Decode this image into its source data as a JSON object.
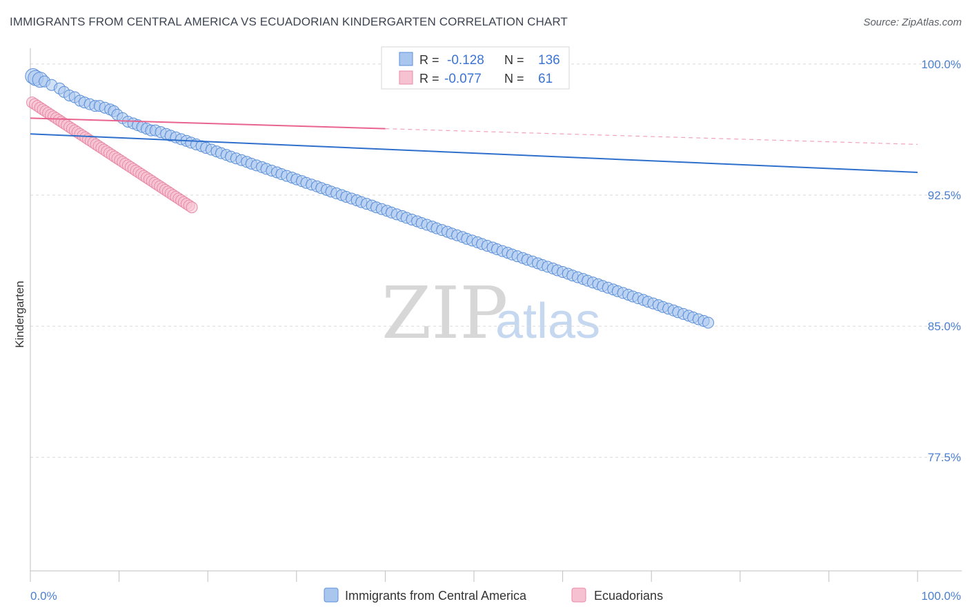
{
  "title": "IMMIGRANTS FROM CENTRAL AMERICA VS ECUADORIAN KINDERGARTEN CORRELATION CHART",
  "source": "Source: ZipAtlas.com",
  "watermark": {
    "zip": "ZIP",
    "atlas": "atlas"
  },
  "colors": {
    "blue_fill": "#a9c6ef",
    "blue_stroke": "#5b8fd8",
    "blue_line": "#2e6fcc",
    "pink_fill": "#f6c2d2",
    "pink_stroke": "#e88aa6",
    "pink_line": "#e8648e",
    "grid": "#d9d9d9",
    "accent_text": "#3b74d4"
  },
  "legend": {
    "series1": {
      "r_label": "R =",
      "r_value": "-0.128",
      "n_label": "N =",
      "n_value": "136"
    },
    "series2": {
      "r_label": "R =",
      "r_value": "-0.077",
      "n_label": "N =",
      "n_value": "61"
    }
  },
  "chart_data": {
    "type": "scatter",
    "title": "IMMIGRANTS FROM CENTRAL AMERICA VS ECUADORIAN KINDERGARTEN CORRELATION CHART",
    "xlabel": "",
    "ylabel": "Kindergarten",
    "xlim": [
      0,
      100
    ],
    "ylim": [
      71.0,
      100.9
    ],
    "x_tick_labels": [
      "0.0%",
      "100.0%"
    ],
    "y_ticks": [
      100.0,
      92.5,
      85.0,
      77.5
    ],
    "y_tick_labels": [
      "100.0%",
      "92.5%",
      "85.0%",
      "77.5%"
    ],
    "grid": true,
    "legend_position": "top-center",
    "series": [
      {
        "name": "Immigrants from Central America",
        "color": "#a9c6ef",
        "trend": {
          "x0": 0,
          "y0": 96.0,
          "x1": 100,
          "y1": 93.8,
          "dashed_from": null
        },
        "points": [
          [
            0.3,
            99.3
          ],
          [
            0.6,
            99.2
          ],
          [
            1.1,
            99.1
          ],
          [
            1.6,
            99.0
          ],
          [
            2.4,
            98.8
          ],
          [
            3.3,
            98.6
          ],
          [
            3.8,
            98.4
          ],
          [
            4.4,
            98.2
          ],
          [
            5.0,
            98.1
          ],
          [
            5.6,
            97.9
          ],
          [
            6.1,
            97.8
          ],
          [
            6.7,
            97.7
          ],
          [
            7.3,
            97.6
          ],
          [
            7.8,
            97.6
          ],
          [
            8.4,
            97.5
          ],
          [
            9.0,
            97.4
          ],
          [
            9.4,
            97.3
          ],
          [
            9.8,
            97.1
          ],
          [
            10.4,
            96.9
          ],
          [
            11.0,
            96.7
          ],
          [
            11.6,
            96.6
          ],
          [
            12.1,
            96.5
          ],
          [
            12.6,
            96.4
          ],
          [
            13.1,
            96.3
          ],
          [
            13.6,
            96.2
          ],
          [
            14.1,
            96.2
          ],
          [
            14.7,
            96.1
          ],
          [
            15.3,
            96.0
          ],
          [
            15.8,
            95.9
          ],
          [
            16.4,
            95.8
          ],
          [
            17.0,
            95.7
          ],
          [
            17.6,
            95.6
          ],
          [
            18.1,
            95.5
          ],
          [
            18.7,
            95.4
          ],
          [
            19.3,
            95.3
          ],
          [
            19.8,
            95.2
          ],
          [
            20.4,
            95.1
          ],
          [
            21.0,
            95.0
          ],
          [
            21.5,
            94.9
          ],
          [
            22.1,
            94.8
          ],
          [
            22.6,
            94.7
          ],
          [
            23.2,
            94.6
          ],
          [
            23.8,
            94.5
          ],
          [
            24.4,
            94.4
          ],
          [
            24.9,
            94.3
          ],
          [
            25.5,
            94.2
          ],
          [
            26.1,
            94.1
          ],
          [
            26.6,
            94.0
          ],
          [
            27.2,
            93.9
          ],
          [
            27.8,
            93.8
          ],
          [
            28.3,
            93.7
          ],
          [
            28.9,
            93.6
          ],
          [
            29.5,
            93.5
          ],
          [
            30.0,
            93.4
          ],
          [
            30.6,
            93.3
          ],
          [
            31.1,
            93.2
          ],
          [
            31.7,
            93.1
          ],
          [
            32.3,
            93.0
          ],
          [
            32.8,
            92.9
          ],
          [
            33.4,
            92.8
          ],
          [
            33.9,
            92.7
          ],
          [
            34.5,
            92.6
          ],
          [
            35.1,
            92.5
          ],
          [
            35.6,
            92.4
          ],
          [
            36.2,
            92.3
          ],
          [
            36.8,
            92.2
          ],
          [
            37.3,
            92.1
          ],
          [
            37.9,
            92.0
          ],
          [
            38.5,
            91.9
          ],
          [
            39.0,
            91.8
          ],
          [
            39.6,
            91.7
          ],
          [
            40.2,
            91.6
          ],
          [
            40.7,
            91.5
          ],
          [
            41.3,
            91.4
          ],
          [
            41.9,
            91.3
          ],
          [
            42.4,
            91.2
          ],
          [
            43.0,
            91.1
          ],
          [
            43.6,
            91.0
          ],
          [
            44.1,
            90.9
          ],
          [
            44.7,
            90.8
          ],
          [
            45.3,
            90.7
          ],
          [
            45.8,
            90.6
          ],
          [
            46.4,
            90.5
          ],
          [
            47.0,
            90.4
          ],
          [
            47.5,
            90.3
          ],
          [
            48.1,
            90.2
          ],
          [
            48.7,
            90.1
          ],
          [
            49.2,
            90.0
          ],
          [
            49.8,
            89.9
          ],
          [
            50.4,
            89.8
          ],
          [
            50.9,
            89.7
          ],
          [
            51.5,
            89.6
          ],
          [
            52.1,
            89.5
          ],
          [
            52.6,
            89.4
          ],
          [
            53.2,
            89.3
          ],
          [
            53.8,
            89.2
          ],
          [
            54.3,
            89.1
          ],
          [
            54.9,
            89.0
          ],
          [
            55.5,
            88.9
          ],
          [
            56.0,
            88.8
          ],
          [
            56.6,
            88.7
          ],
          [
            57.2,
            88.6
          ],
          [
            57.7,
            88.5
          ],
          [
            58.3,
            88.4
          ],
          [
            58.9,
            88.3
          ],
          [
            59.4,
            88.2
          ],
          [
            60.0,
            88.1
          ],
          [
            60.6,
            88.0
          ],
          [
            61.1,
            87.9
          ],
          [
            61.7,
            87.8
          ],
          [
            62.3,
            87.7
          ],
          [
            62.8,
            87.6
          ],
          [
            63.4,
            87.5
          ],
          [
            64.0,
            87.4
          ],
          [
            64.5,
            87.3
          ],
          [
            65.1,
            87.2
          ],
          [
            65.7,
            87.1
          ],
          [
            66.2,
            87.0
          ],
          [
            66.8,
            86.9
          ],
          [
            67.4,
            86.8
          ],
          [
            67.9,
            86.7
          ],
          [
            68.5,
            86.6
          ],
          [
            69.1,
            86.5
          ],
          [
            69.6,
            86.4
          ],
          [
            70.2,
            86.3
          ],
          [
            70.8,
            86.2
          ],
          [
            71.3,
            86.1
          ],
          [
            71.9,
            86.0
          ],
          [
            72.5,
            85.9
          ],
          [
            73.0,
            85.8
          ],
          [
            73.6,
            85.7
          ],
          [
            74.2,
            85.6
          ],
          [
            74.7,
            85.5
          ],
          [
            75.3,
            85.4
          ],
          [
            75.9,
            85.3
          ],
          [
            76.4,
            85.2
          ]
        ]
      },
      {
        "name": "Ecuadorians",
        "color": "#f6c2d2",
        "trend": {
          "x0": 0,
          "y0": 96.9,
          "x1": 100,
          "y1": 95.4,
          "dashed_from": 40
        },
        "points": [
          [
            0.2,
            97.8
          ],
          [
            0.5,
            97.7
          ],
          [
            0.8,
            97.6
          ],
          [
            1.1,
            97.5
          ],
          [
            1.4,
            97.4
          ],
          [
            1.7,
            97.3
          ],
          [
            2.0,
            97.2
          ],
          [
            2.3,
            97.1
          ],
          [
            2.6,
            97.0
          ],
          [
            2.9,
            96.9
          ],
          [
            3.2,
            96.8
          ],
          [
            3.5,
            96.7
          ],
          [
            3.8,
            96.6
          ],
          [
            4.1,
            96.5
          ],
          [
            4.4,
            96.4
          ],
          [
            4.7,
            96.3
          ],
          [
            5.0,
            96.2
          ],
          [
            5.3,
            96.1
          ],
          [
            5.6,
            96.0
          ],
          [
            5.9,
            95.9
          ],
          [
            6.2,
            95.8
          ],
          [
            6.5,
            95.7
          ],
          [
            6.8,
            95.6
          ],
          [
            7.1,
            95.5
          ],
          [
            7.4,
            95.4
          ],
          [
            7.7,
            95.3
          ],
          [
            8.0,
            95.2
          ],
          [
            8.3,
            95.1
          ],
          [
            8.6,
            95.0
          ],
          [
            8.9,
            94.9
          ],
          [
            9.2,
            94.8
          ],
          [
            9.5,
            94.7
          ],
          [
            9.8,
            94.6
          ],
          [
            10.1,
            94.5
          ],
          [
            10.4,
            94.4
          ],
          [
            10.7,
            94.3
          ],
          [
            11.0,
            94.2
          ],
          [
            11.3,
            94.1
          ],
          [
            11.6,
            94.0
          ],
          [
            11.9,
            93.9
          ],
          [
            12.2,
            93.8
          ],
          [
            12.5,
            93.7
          ],
          [
            12.8,
            93.6
          ],
          [
            13.1,
            93.5
          ],
          [
            13.4,
            93.4
          ],
          [
            13.7,
            93.3
          ],
          [
            14.0,
            93.2
          ],
          [
            14.3,
            93.1
          ],
          [
            14.6,
            93.0
          ],
          [
            14.9,
            92.9
          ],
          [
            15.2,
            92.8
          ],
          [
            15.5,
            92.7
          ],
          [
            15.8,
            92.6
          ],
          [
            16.1,
            92.5
          ],
          [
            16.4,
            92.4
          ],
          [
            16.7,
            92.3
          ],
          [
            17.0,
            92.2
          ],
          [
            17.3,
            92.1
          ],
          [
            17.6,
            92.0
          ],
          [
            17.9,
            91.9
          ],
          [
            18.2,
            91.8
          ]
        ]
      }
    ]
  }
}
